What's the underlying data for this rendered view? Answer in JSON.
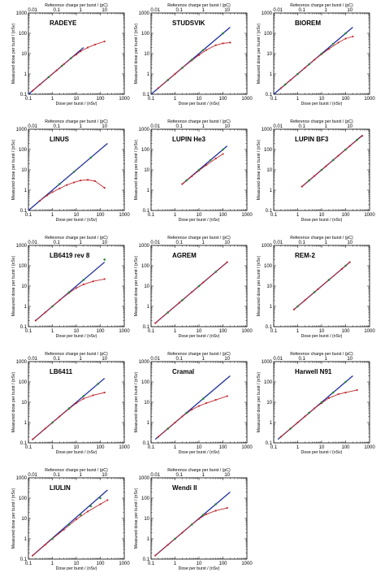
{
  "chart_data": {
    "type": "scatter",
    "x_scale": "log",
    "y_scale": "log",
    "xlabel": "Dose per burst / (nSv)",
    "ylabel": "Measured dose per burst / (nSv)",
    "top_axis_label": "Reference charge per burst / (pC)",
    "xlim": [
      0.1,
      1000
    ],
    "ylim": [
      0.1,
      1000
    ],
    "x_ticks": [
      "0.1",
      "1",
      "10",
      "100",
      "1000"
    ],
    "y_ticks": [
      "0.1",
      "1",
      "10",
      "100",
      "1000"
    ],
    "top_ticks": [
      "0.01",
      "0.1",
      "1",
      "10"
    ],
    "top_tick_dose_positions": [
      0.15,
      1.5,
      15,
      150
    ],
    "series_colors": {
      "reference_line": "#1f2f9c",
      "measured": "#c0282d",
      "points": "#2a8a3a"
    },
    "panels": [
      {
        "title": "RADEYE",
        "reference_line": {
          "x": [
            0.1,
            20
          ],
          "y": [
            0.1,
            20
          ]
        },
        "measured": {
          "x": [
            0.15,
            0.3,
            0.7,
            1.5,
            3,
            6,
            10,
            15,
            30,
            60,
            150
          ],
          "y": [
            0.15,
            0.3,
            0.7,
            1.5,
            3,
            6,
            9,
            13,
            20,
            28,
            40
          ]
        },
        "points": {
          "x": [
            0.7,
            2.5,
            6
          ],
          "y": [
            0.7,
            2.5,
            6
          ]
        }
      },
      {
        "title": "STUDSVIK",
        "reference_line": {
          "x": [
            0.1,
            200
          ],
          "y": [
            0.1,
            200
          ]
        },
        "measured": {
          "x": [
            0.2,
            0.5,
            1,
            2,
            5,
            10,
            20,
            50,
            100,
            200
          ],
          "y": [
            0.2,
            0.5,
            1,
            2,
            4.6,
            8.5,
            15,
            26,
            32,
            35
          ]
        },
        "points": {
          "x": [
            0.5,
            2,
            5,
            15,
            100
          ],
          "y": [
            0.5,
            2,
            5,
            15,
            100
          ]
        }
      },
      {
        "title": "BIOREM",
        "reference_line": {
          "x": [
            0.1,
            200
          ],
          "y": [
            0.1,
            200
          ]
        },
        "measured": {
          "x": [
            0.2,
            0.5,
            1,
            2,
            5,
            10,
            20,
            50,
            100,
            200
          ],
          "y": [
            0.2,
            0.5,
            1,
            2,
            5,
            9.3,
            17,
            35,
            55,
            70
          ]
        },
        "points": {
          "x": [
            0.3,
            1,
            3,
            10,
            30,
            100
          ],
          "y": [
            0.3,
            1,
            3,
            10,
            30,
            100
          ]
        }
      },
      {
        "title": "LINUS",
        "reference_line": {
          "x": [
            0.1,
            200
          ],
          "y": [
            0.1,
            200
          ]
        },
        "measured": {
          "x": [
            0.3,
            0.6,
            1,
            2,
            4,
            8,
            15,
            30,
            60,
            150
          ],
          "y": [
            0.3,
            0.55,
            0.8,
            1.2,
            1.8,
            2.4,
            3,
            3.2,
            2.8,
            1.3
          ]
        },
        "points": {
          "x": [
            2,
            8,
            40
          ],
          "y": [
            2,
            8,
            40
          ]
        }
      },
      {
        "title": "LUPIN He3",
        "reference_line": {
          "x": [
            2,
            150
          ],
          "y": [
            2,
            150
          ]
        },
        "measured": {
          "x": [
            2,
            5,
            10,
            20,
            50,
            100
          ],
          "y": [
            2,
            4.8,
            9.2,
            17,
            36,
            60
          ]
        },
        "points": {
          "x": [
            3,
            10,
            30,
            100
          ],
          "y": [
            3,
            10,
            30,
            100
          ]
        }
      },
      {
        "title": "LUPIN BF3",
        "reference_line": {
          "x": [
            1.5,
            500
          ],
          "y": [
            1.5,
            500
          ]
        },
        "measured": {
          "x": [
            1.5,
            5,
            15,
            50,
            150,
            500
          ],
          "y": [
            1.5,
            5,
            15,
            50,
            150,
            470
          ]
        },
        "points": {
          "x": [
            3,
            10,
            30,
            100,
            300
          ],
          "y": [
            3,
            10,
            30,
            100,
            300
          ]
        }
      },
      {
        "title": "LB6419 rev 8",
        "reference_line": {
          "x": [
            0.2,
            150
          ],
          "y": [
            0.2,
            150
          ]
        },
        "measured": {
          "x": [
            0.2,
            0.5,
            1,
            2,
            5,
            10,
            20,
            50,
            150
          ],
          "y": [
            0.2,
            0.5,
            1,
            2,
            4.6,
            8,
            12,
            17,
            22
          ]
        },
        "points": {
          "x": [
            1,
            5,
            20,
            150
          ],
          "y": [
            1,
            5,
            20,
            200
          ]
        }
      },
      {
        "title": "AGREM",
        "reference_line": {
          "x": [
            0.15,
            150
          ],
          "y": [
            0.15,
            150
          ]
        },
        "measured": {
          "x": [
            0.15,
            0.5,
            1.5,
            5,
            15,
            50,
            150
          ],
          "y": [
            0.15,
            0.5,
            1.5,
            5,
            15,
            50,
            150
          ]
        },
        "points": {
          "x": [
            0.5,
            2,
            10,
            50
          ],
          "y": [
            0.5,
            2,
            10,
            50
          ]
        }
      },
      {
        "title": "REM-2",
        "reference_line": {
          "x": [
            0.7,
            150
          ],
          "y": [
            0.7,
            150
          ]
        },
        "measured": {
          "x": [
            0.7,
            2,
            7,
            20,
            70,
            150
          ],
          "y": [
            0.7,
            2,
            7,
            20,
            70,
            150
          ]
        },
        "points": {
          "x": [
            1,
            5,
            20,
            100
          ],
          "y": [
            1,
            5,
            20,
            100
          ]
        }
      },
      {
        "title": "LB6411",
        "reference_line": {
          "x": [
            0.15,
            150
          ],
          "y": [
            0.15,
            150
          ]
        },
        "measured": {
          "x": [
            0.15,
            0.5,
            1,
            2,
            5,
            10,
            20,
            50,
            150
          ],
          "y": [
            0.15,
            0.5,
            1,
            2,
            4.8,
            9,
            15,
            22,
            30
          ]
        },
        "points": {
          "x": [
            1,
            5,
            20,
            80
          ],
          "y": [
            1,
            5,
            20,
            80
          ]
        }
      },
      {
        "title": "Cramal",
        "reference_line": {
          "x": [
            0.15,
            200
          ],
          "y": [
            0.15,
            200
          ]
        },
        "measured": {
          "x": [
            0.2,
            0.5,
            1,
            2,
            5,
            10,
            20,
            50,
            150
          ],
          "y": [
            0.2,
            0.5,
            1,
            2,
            4.3,
            6.5,
            9,
            13,
            20
          ]
        },
        "points": {
          "x": [
            0.5,
            3,
            15
          ],
          "y": [
            0.5,
            3,
            15
          ]
        }
      },
      {
        "title": "Harwell N91",
        "reference_line": {
          "x": [
            0.15,
            200
          ],
          "y": [
            0.15,
            200
          ]
        },
        "measured": {
          "x": [
            0.2,
            0.5,
            1,
            2,
            5,
            10,
            20,
            50,
            100,
            300
          ],
          "y": [
            0.2,
            0.5,
            1,
            2,
            5,
            9,
            16,
            25,
            30,
            40
          ]
        },
        "points": {
          "x": [
            0.5,
            3,
            10,
            30,
            100
          ],
          "y": [
            0.5,
            3,
            10,
            30,
            100
          ]
        }
      },
      {
        "title": "LIULIN",
        "reference_line": {
          "x": [
            0.15,
            200
          ],
          "y": [
            0.15,
            250
          ]
        },
        "measured": {
          "x": [
            0.15,
            0.5,
            1,
            3,
            10,
            30,
            100,
            200
          ],
          "y": [
            0.15,
            0.5,
            1,
            2.8,
            9,
            22,
            50,
            80
          ]
        },
        "points": {
          "x": [
            1,
            5,
            15,
            40,
            100
          ],
          "y": [
            1,
            5,
            15,
            40,
            100
          ]
        }
      },
      {
        "title": "Wendi II",
        "reference_line": {
          "x": [
            0.15,
            200
          ],
          "y": [
            0.15,
            200
          ]
        },
        "measured": {
          "x": [
            0.15,
            0.5,
            1,
            2,
            5,
            10,
            20,
            50,
            150
          ],
          "y": [
            0.15,
            0.5,
            1,
            2,
            5,
            9.5,
            16,
            24,
            33
          ]
        },
        "points": {
          "x": [
            1,
            5,
            15,
            50
          ],
          "y": [
            1,
            5,
            15,
            50
          ]
        }
      }
    ]
  }
}
